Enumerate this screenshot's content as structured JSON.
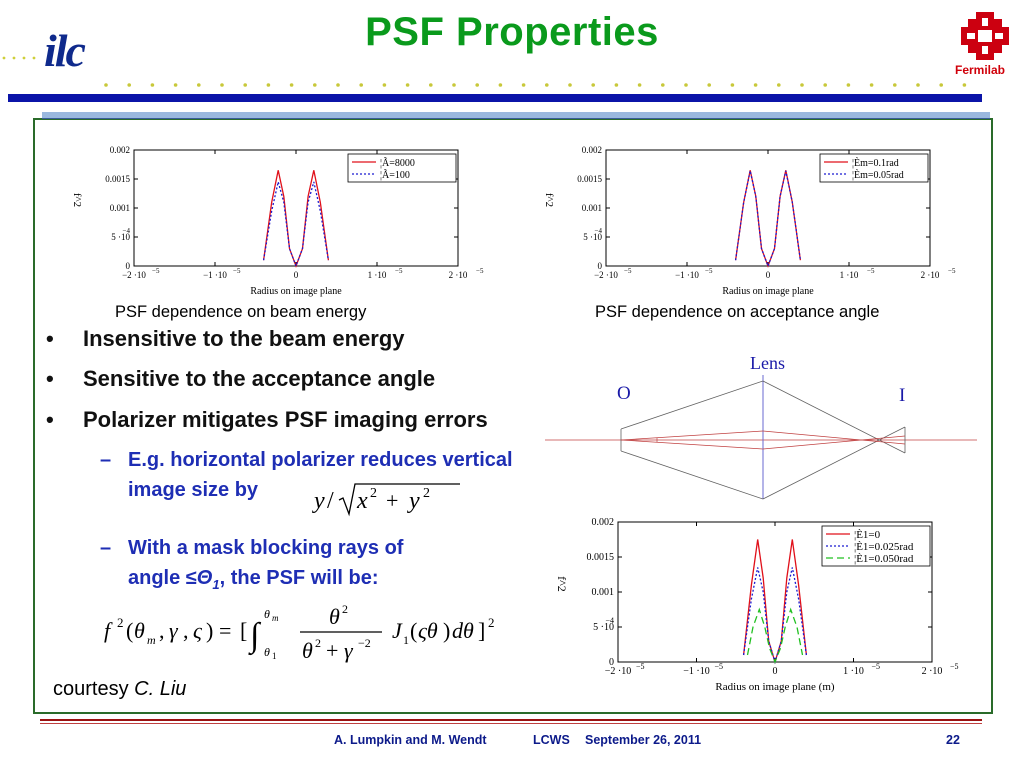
{
  "header": {
    "title": "PSF Properties",
    "logo_left": "ilc",
    "logo_right": "Fermilab"
  },
  "plots": [
    {
      "caption": "PSF dependence on beam energy",
      "ylabel": "f^2",
      "xlabel": "Radius on image plane",
      "ytick_labels": [
        "0",
        "5 ·10",
        "0.001",
        "0.0015",
        "0.002"
      ],
      "xtick_labels": [
        "−2 ·10",
        "−1 ·10",
        "0",
        "1 ·10",
        "2 ·10"
      ],
      "exp_label": "−5",
      "exp_label_y": "−4",
      "legend": [
        "¦Ã=8000",
        "¦Ã=100"
      ]
    },
    {
      "caption": "PSF dependence on acceptance angle",
      "ylabel": "f^2",
      "xlabel": "Radius on image plane",
      "ytick_labels": [
        "0",
        "5 ·10",
        "0.001",
        "0.0015",
        "0.002"
      ],
      "xtick_labels": [
        "−2 ·10",
        "−1 ·10",
        "0",
        "1 ·10",
        "2 ·10"
      ],
      "exp_label": "−5",
      "exp_label_y": "−4",
      "legend": [
        "¦Èm=0.1rad",
        "¦Èm=0.05rad"
      ]
    },
    {
      "caption": "",
      "ylabel": "f^2",
      "xlabel": "Radius on image plane (m)",
      "ytick_labels": [
        "0",
        "5 ·10",
        "0.001",
        "0.0015",
        "0.002"
      ],
      "xtick_labels": [
        "−2 ·10",
        "−1 ·10",
        "0",
        "1 ·10",
        "2 ·10"
      ],
      "exp_label": "−5",
      "exp_label_y": "−4",
      "legend": [
        "¦È1=0",
        "¦È1=0.025rad",
        "¦È1=0.050rad"
      ]
    }
  ],
  "chart_data": [
    {
      "type": "line",
      "title": "PSF dependence on beam energy",
      "xlabel": "Radius on image plane",
      "ylabel": "f^2",
      "xlim": [
        -2e-05,
        2e-05
      ],
      "ylim": [
        0,
        0.002
      ],
      "series": [
        {
          "name": "¦Ã=8000",
          "x": [
            -4e-06,
            -3e-06,
            -2.2e-06,
            -1.5e-06,
            -8e-07,
            0,
            8e-07,
            1.5e-06,
            2.2e-06,
            3e-06,
            4e-06
          ],
          "y": [
            0.0001,
            0.0011,
            0.00165,
            0.0012,
            0.0003,
            0,
            0.0003,
            0.0012,
            0.00165,
            0.0011,
            0.0001
          ]
        },
        {
          "name": "¦Ã=100",
          "x": [
            -4e-06,
            -3e-06,
            -2.2e-06,
            -1.5e-06,
            -8e-07,
            0,
            8e-07,
            1.5e-06,
            2.2e-06,
            3e-06,
            4e-06
          ],
          "y": [
            0.0001,
            0.00095,
            0.00145,
            0.0011,
            0.0003,
            0,
            0.0003,
            0.0011,
            0.00145,
            0.00095,
            0.0001
          ]
        }
      ]
    },
    {
      "type": "line",
      "title": "PSF dependence on acceptance angle",
      "xlabel": "Radius on image plane",
      "ylabel": "f^2",
      "xlim": [
        -2e-05,
        2e-05
      ],
      "ylim": [
        0,
        0.002
      ],
      "series": [
        {
          "name": "¦Èm=0.1rad",
          "x": [
            -4e-06,
            -3e-06,
            -2.2e-06,
            -1.5e-06,
            -8e-07,
            0,
            8e-07,
            1.5e-06,
            2.2e-06,
            3e-06,
            4e-06
          ],
          "y": [
            0.0001,
            0.0011,
            0.00165,
            0.0012,
            0.0003,
            0,
            0.0003,
            0.0012,
            0.00165,
            0.0011,
            0.0001
          ]
        },
        {
          "name": "¦Èm=0.05rad",
          "x": [
            -4e-06,
            -3e-06,
            -2.2e-06,
            -1.5e-06,
            -8e-07,
            0,
            8e-07,
            1.5e-06,
            2.2e-06,
            3e-06,
            4e-06
          ],
          "y": [
            0.0001,
            0.0011,
            0.00164,
            0.0012,
            0.0003,
            0,
            0.0003,
            0.0012,
            0.00164,
            0.0011,
            0.0001
          ]
        }
      ]
    },
    {
      "type": "line",
      "title": "",
      "xlabel": "Radius on image plane (m)",
      "ylabel": "f^2",
      "xlim": [
        -2e-05,
        2e-05
      ],
      "ylim": [
        0,
        0.002
      ],
      "series": [
        {
          "name": "¦È1=0",
          "x": [
            -4e-06,
            -3e-06,
            -2.2e-06,
            -1.5e-06,
            -8e-07,
            0,
            8e-07,
            1.5e-06,
            2.2e-06,
            3e-06,
            4e-06
          ],
          "y": [
            0.0001,
            0.0011,
            0.00175,
            0.0012,
            0.0003,
            0,
            0.0003,
            0.0012,
            0.00175,
            0.0011,
            0.0001
          ]
        },
        {
          "name": "¦È1=0.025rad",
          "x": [
            -4e-06,
            -3e-06,
            -2.2e-06,
            -1.5e-06,
            -8e-07,
            0,
            8e-07,
            1.5e-06,
            2.2e-06,
            3e-06,
            4e-06
          ],
          "y": [
            0.0001,
            0.0009,
            0.00135,
            0.001,
            0.0003,
            0,
            0.0003,
            0.001,
            0.00135,
            0.0009,
            0.0001
          ]
        },
        {
          "name": "¦È1=0.050rad",
          "x": [
            -3.5e-06,
            -2.8e-06,
            -2e-06,
            -1.3e-06,
            -7e-07,
            0,
            7e-07,
            1.3e-06,
            2e-06,
            2.8e-06,
            3.5e-06
          ],
          "y": [
            0.0001,
            0.0005,
            0.00075,
            0.0005,
            0.0002,
            0,
            0.0002,
            0.0005,
            0.00075,
            0.0005,
            0.0001
          ]
        }
      ]
    }
  ],
  "bullets": [
    "Insensitive to the beam energy",
    "Sensitive to the acceptance angle",
    "Polarizer mitigates PSF imaging errors"
  ],
  "subbullets": [
    {
      "line1": "E.g. horizontal polarizer reduces vertical",
      "line2": "image size by"
    },
    {
      "line1": "With a mask blocking rays of",
      "line2_prefix": "angle ≤",
      "line2_theta": "Θ",
      "line2_sub": "1",
      "line2_suffix": ", the PSF will be:"
    }
  ],
  "math": {
    "ratio_expr": "y/√(x² + y²)",
    "ratio_num": "y",
    "ratio_x": "x",
    "ratio_y": "y",
    "ratio_exp": "2",
    "ratio_plus": "+",
    "formula": "f²(θm, γ, ς) = [∫θ1θm θ²/(θ²+γ⁻²) J1(ςθ)dθ]²"
  },
  "lens_diagram": {
    "lens_label": "Lens",
    "object_label": "O",
    "image_label": "I"
  },
  "courtesy": {
    "prefix": "courtesy ",
    "name": "C. Liu"
  },
  "footer": {
    "authors": "A. Lumpkin and M. Wendt",
    "event": "LCWS",
    "date": "September 26, 2011",
    "page": "22"
  },
  "colors": {
    "title_green": "#0a9a1c",
    "header_blue": "#0b14a8",
    "sub_blue": "#1e2eb4",
    "footer_blue": "#0c1a8a",
    "fermilab_red": "#d0000a",
    "series_red": "#e0101a",
    "series_blue": "#1a1ad0",
    "series_green": "#20c020"
  }
}
